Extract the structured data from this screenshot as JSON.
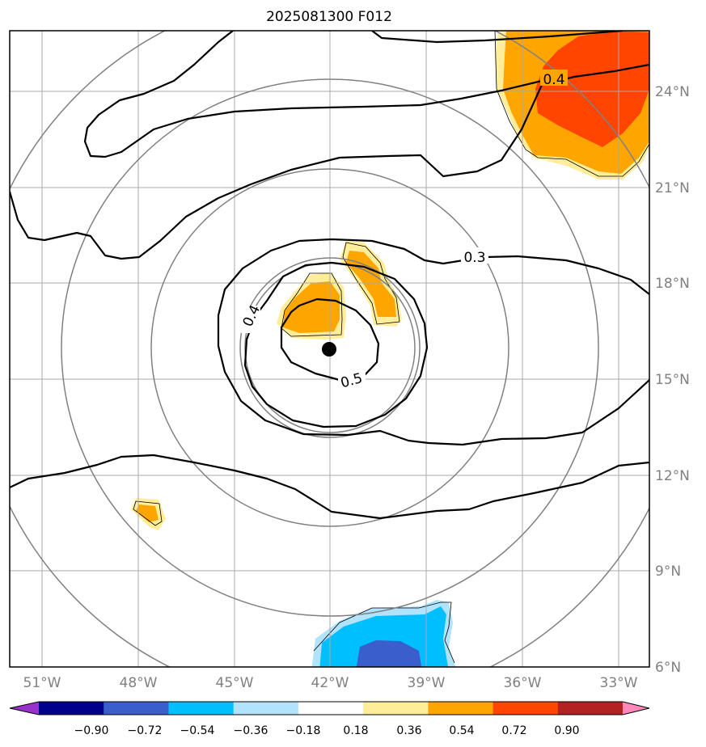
{
  "title": "2025081300 F012",
  "lon_labels": [
    "51°W",
    "48°W",
    "45°W",
    "42°W",
    "39°W",
    "36°W",
    "33°W"
  ],
  "lat_labels": [
    "24°N",
    "21°N",
    "18°N",
    "15°N",
    "12°N",
    "9°N",
    "6°N"
  ],
  "contour_labels": [
    "0.4",
    "0.3",
    "0.4",
    "0.5"
  ],
  "colorbar": {
    "tick_labels": [
      "−0.90",
      "−0.72",
      "−0.54",
      "−0.36",
      "−0.18",
      "0.18",
      "0.36",
      "0.54",
      "0.72",
      "0.90"
    ],
    "colors": [
      "#9932cc",
      "#00008b",
      "#3a5fcd",
      "#00bfff",
      "#b2e3fc",
      "#ffffff",
      "#ffee99",
      "#ffa500",
      "#ff4500",
      "#b22222",
      "#ff88bb"
    ]
  },
  "center_marker": {
    "lon": -42,
    "lat": 16
  }
}
